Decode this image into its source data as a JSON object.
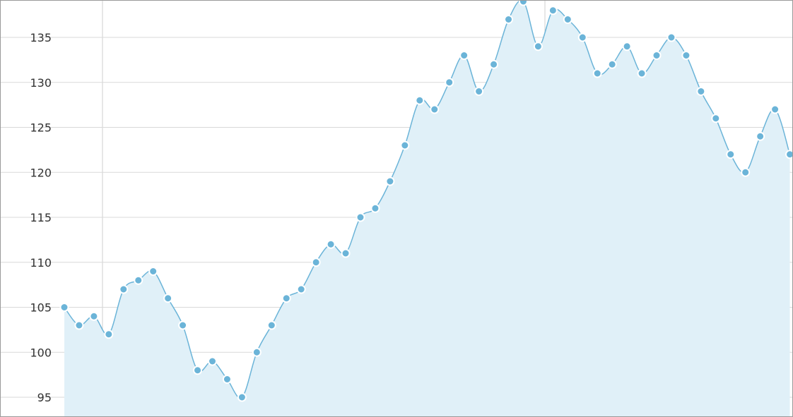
{
  "chart_data": {
    "type": "area",
    "title": "",
    "xlabel": "",
    "ylabel": "",
    "ylim": [
      93,
      139
    ],
    "yticks": [
      95,
      100,
      105,
      110,
      115,
      120,
      125,
      130,
      135
    ],
    "grid": true,
    "legend": "none",
    "series": [
      {
        "values": [
          105,
          103,
          104,
          102,
          107,
          108,
          109,
          106,
          103,
          98,
          99,
          97,
          95,
          100,
          103,
          106,
          107,
          110,
          112,
          111,
          115,
          116,
          119,
          123,
          128,
          127,
          130,
          133,
          129,
          132,
          137,
          139,
          134,
          138,
          137,
          135,
          131,
          132,
          134,
          131,
          133,
          135,
          133,
          129,
          126,
          122,
          120,
          124,
          127,
          122
        ]
      }
    ],
    "colors": {
      "line": "#6bb4d8",
      "fill": "#e0f0f8",
      "marker": "#6bb4d8",
      "marker_stroke": "#ffffff"
    }
  }
}
